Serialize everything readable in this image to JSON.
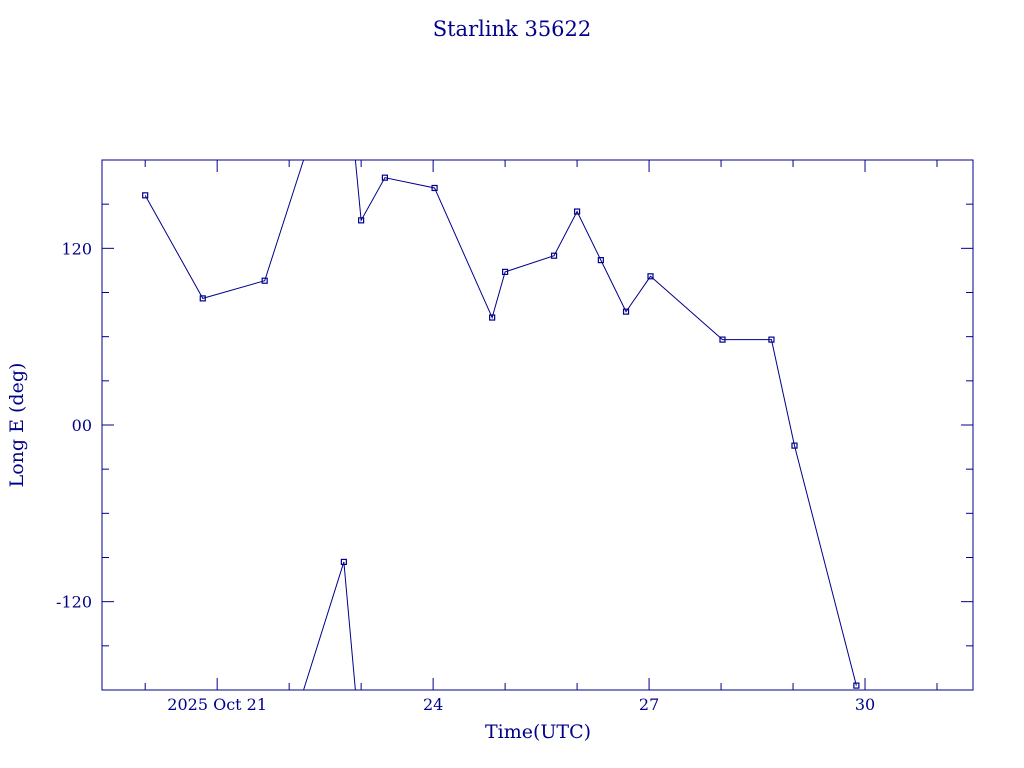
{
  "colors": {
    "ink": "#00008b",
    "background": "#ffffff"
  },
  "chart_data": {
    "type": "line",
    "title": "Starlink 35622",
    "xlabel": "Time(UTC)",
    "ylabel": "Long E (deg)",
    "x_unit": "days",
    "xlim": [
      19.4,
      31.5
    ],
    "ylim": [
      -180,
      180
    ],
    "y_ticks": [
      {
        "value": 120,
        "label": "120"
      },
      {
        "value": 0,
        "label": "00"
      },
      {
        "value": -120,
        "label": "-120"
      }
    ],
    "x_ticks": [
      {
        "value": 21,
        "label": "2025 Oct 21"
      },
      {
        "value": 24,
        "label": "24"
      },
      {
        "value": 27,
        "label": "27"
      },
      {
        "value": 30,
        "label": "30"
      }
    ],
    "x_minor_step": 1,
    "y_minor_step": 30,
    "grid": false,
    "series": [
      {
        "marker": "square",
        "points": [
          {
            "x": 20.0,
            "y": 156
          },
          {
            "x": 20.8,
            "y": 86
          },
          {
            "x": 21.66,
            "y": 98
          },
          {
            "x": 22.2,
            "y": 180,
            "marker": false,
            "break_after": true
          },
          {
            "x": 22.2,
            "y": -180,
            "marker": false
          },
          {
            "x": 22.76,
            "y": -93
          },
          {
            "x": 22.92,
            "y": -180,
            "marker": false,
            "break_after": true
          },
          {
            "x": 22.92,
            "y": 180,
            "marker": false
          },
          {
            "x": 23.0,
            "y": 139
          },
          {
            "x": 23.33,
            "y": 168
          },
          {
            "x": 24.02,
            "y": 161
          },
          {
            "x": 24.82,
            "y": 73
          },
          {
            "x": 25.0,
            "y": 104
          },
          {
            "x": 25.68,
            "y": 115
          },
          {
            "x": 26.0,
            "y": 145
          },
          {
            "x": 26.33,
            "y": 112
          },
          {
            "x": 26.68,
            "y": 77
          },
          {
            "x": 27.02,
            "y": 101
          },
          {
            "x": 28.02,
            "y": 58
          },
          {
            "x": 28.7,
            "y": 58
          },
          {
            "x": 29.02,
            "y": -14
          },
          {
            "x": 29.88,
            "y": -177
          }
        ]
      }
    ]
  }
}
